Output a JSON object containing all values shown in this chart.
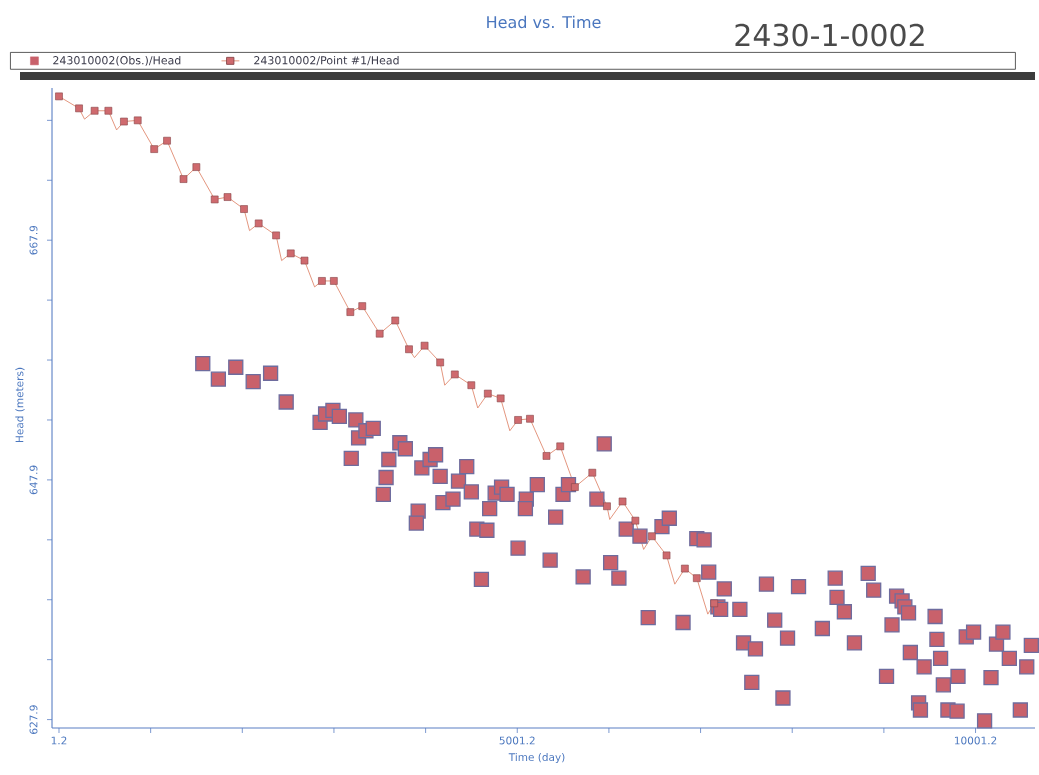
{
  "chart_data": {
    "type": "scatter",
    "title": "Head vs. Time",
    "annotations": [
      "2430-1-0002"
    ],
    "xlabel": "Time (day)",
    "ylabel": "Head (meters)",
    "xlim": [
      -75,
      10650
    ],
    "ylim": [
      627.2,
      680.6
    ],
    "xticks": [
      1.2,
      {
        "value": 1001.2,
        "label": null
      },
      {
        "value": 2001.2,
        "label": null
      },
      {
        "value": 3001.2,
        "label": null
      },
      {
        "value": 4001.2,
        "label": null
      },
      5001.2,
      {
        "value": 6001.2,
        "label": null
      },
      {
        "value": 7001.2,
        "label": null
      },
      {
        "value": 8001.2,
        "label": null
      },
      {
        "value": 9001.2,
        "label": null
      },
      10001.2
    ],
    "yticks": [
      627.9,
      {
        "value": 632.9,
        "label": null
      },
      {
        "value": 637.9,
        "label": null
      },
      {
        "value": 642.9,
        "label": null
      },
      647.9,
      {
        "value": 652.9,
        "label": null
      },
      {
        "value": 657.9,
        "label": null
      },
      {
        "value": 662.9,
        "label": null
      },
      667.9,
      {
        "value": 672.9,
        "label": null
      },
      {
        "value": 677.9,
        "label": null
      }
    ],
    "legend": "top",
    "series": [
      {
        "name": "243010002(Obs.)/Head",
        "marker": "square",
        "color": "#c9616b",
        "x": [
          1570,
          1740,
          1930,
          2120,
          2310,
          2480,
          2850,
          2910,
          2990,
          3060,
          3240,
          3270,
          3350,
          3430,
          3190,
          3600,
          3720,
          3780,
          3570,
          3540,
          3920,
          3900,
          3960,
          4050,
          4110,
          4160,
          4360,
          4450,
          4500,
          4190,
          4300,
          4700,
          4760,
          4830,
          4890,
          4560,
          4670,
          5010,
          4610,
          5100,
          5090,
          5220,
          5420,
          5500,
          5560,
          5360,
          5720,
          5950,
          5870,
          6020,
          6110,
          6190,
          6340,
          6580,
          6660,
          6430,
          6810,
          6960,
          7040,
          7090,
          7260,
          7190,
          7220,
          7430,
          7470,
          7600,
          7560,
          7720,
          7810,
          7950,
          7900,
          8070,
          8330,
          8470,
          8490,
          8570,
          8680,
          8830,
          8890,
          9090,
          9030,
          9140,
          9200,
          9230,
          9270,
          9290,
          9380,
          9400,
          9440,
          9560,
          9580,
          9620,
          9650,
          9810,
          9700,
          9800,
          9900,
          9980,
          10100,
          10170,
          10230,
          10300,
          10370,
          10490,
          10560,
          10610
        ],
        "values": [
          657.6,
          656.3,
          657.3,
          656.1,
          656.8,
          654.4,
          652.7,
          653.4,
          653.7,
          653.2,
          652.9,
          651.4,
          652.0,
          652.2,
          649.7,
          649.6,
          651.0,
          650.5,
          648.1,
          646.7,
          645.3,
          644.3,
          648.9,
          649.6,
          650.0,
          648.2,
          647.8,
          649.0,
          646.9,
          646.0,
          646.3,
          645.5,
          646.8,
          647.3,
          646.7,
          643.8,
          643.7,
          642.2,
          639.6,
          646.3,
          645.5,
          647.5,
          644.8,
          646.7,
          647.5,
          641.2,
          639.8,
          650.9,
          646.3,
          641.0,
          639.7,
          643.8,
          643.2,
          644.0,
          644.7,
          636.4,
          636.0,
          643.0,
          642.9,
          640.2,
          638.8,
          637.3,
          637.1,
          637.1,
          634.3,
          633.8,
          631.0,
          639.2,
          636.2,
          634.7,
          629.7,
          639.0,
          635.5,
          639.7,
          638.1,
          636.9,
          634.3,
          640.1,
          638.7,
          635.8,
          631.5,
          638.2,
          637.8,
          637.3,
          636.8,
          633.5,
          629.3,
          628.7,
          632.3,
          636.5,
          634.6,
          633.0,
          630.8,
          631.5,
          628.7,
          628.6,
          634.8,
          635.2,
          627.8,
          631.4,
          634.2,
          635.2,
          633.0,
          628.7,
          632.3,
          634.1
        ]
      },
      {
        "name": "243010002/Point #1/Head",
        "type": "line",
        "marker": "none",
        "line_style": "solid",
        "color": "#e08a70",
        "x": [
          1.2,
          220,
          280,
          390,
          540,
          630,
          710,
          860,
          1040,
          1180,
          1360,
          1500,
          1700,
          1840,
          2020,
          2080,
          2180,
          2370,
          2430,
          2530,
          2680,
          2790,
          2870,
          3000,
          3180,
          3310,
          3500,
          3670,
          3820,
          3880,
          3990,
          4160,
          4210,
          4320,
          4500,
          4570,
          4680,
          4820,
          4920,
          5010,
          5140,
          5320,
          5470,
          5630,
          5820,
          5980,
          6010,
          6150,
          6290,
          6380,
          6470,
          6630,
          6720,
          6830,
          6960,
          7080,
          7150
        ],
        "values": [
          679.9,
          678.9,
          678.0,
          678.7,
          678.7,
          677.1,
          677.8,
          677.9,
          675.5,
          676.2,
          673.0,
          674.0,
          671.3,
          671.5,
          670.5,
          668.7,
          669.3,
          668.3,
          666.2,
          666.8,
          666.2,
          664.0,
          664.5,
          664.5,
          661.9,
          662.4,
          660.1,
          661.2,
          658.8,
          658.1,
          659.1,
          657.7,
          655.8,
          656.7,
          655.8,
          653.9,
          655.1,
          654.7,
          652.0,
          652.9,
          653.0,
          649.9,
          650.7,
          647.3,
          648.5,
          645.7,
          644.6,
          646.1,
          644.5,
          642.1,
          643.2,
          641.6,
          639.2,
          640.5,
          639.7,
          636.7,
          637.6
        ]
      },
      {
        "marker": "square",
        "color": "#cf6a6e",
        "x": [
          1.2,
          220,
          390,
          540,
          710,
          860,
          1040,
          1180,
          1360,
          1500,
          1700,
          1840,
          2020,
          2180,
          2370,
          2530,
          2680,
          2870,
          3000,
          3180,
          3310,
          3500,
          3670,
          3820,
          3990,
          4160,
          4320,
          4500,
          4680,
          4820,
          5010,
          5140,
          5320,
          5470,
          5630,
          5820,
          5980,
          6150,
          6290,
          6470,
          6630,
          6830,
          6960,
          7150
        ],
        "values": [
          679.9,
          678.9,
          678.7,
          678.7,
          677.8,
          677.9,
          675.5,
          676.2,
          673.0,
          674.0,
          671.3,
          671.5,
          670.5,
          669.3,
          668.3,
          666.8,
          666.2,
          664.5,
          664.5,
          661.9,
          662.4,
          660.1,
          661.2,
          658.8,
          659.1,
          657.7,
          656.7,
          655.8,
          655.1,
          654.7,
          652.9,
          653.0,
          649.9,
          650.7,
          647.3,
          648.5,
          645.7,
          646.1,
          644.5,
          643.2,
          641.6,
          640.5,
          639.7,
          637.6
        ]
      }
    ]
  }
}
